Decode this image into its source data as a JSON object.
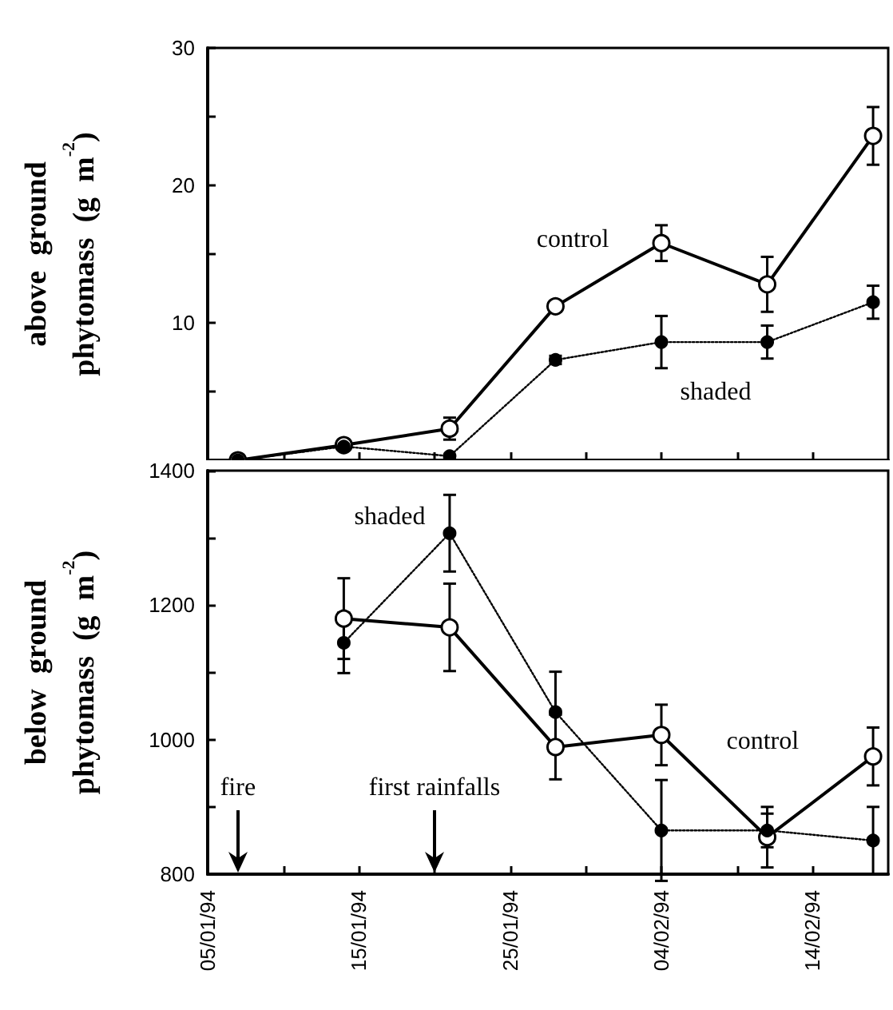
{
  "chart_data": [
    {
      "type": "line",
      "ylabel": "above ground phytomass (g m$^{-2}$)",
      "x": [
        "1994-01-07",
        "1994-01-14",
        "1994-01-21",
        "1994-01-28",
        "1994-02-04",
        "1994-02-11",
        "1994-02-18"
      ],
      "series": [
        {
          "name": "control",
          "color": "#000000",
          "line_style": "solid",
          "values": [
            0,
            1.1,
            2.3,
            11.2,
            15.8,
            12.8,
            23.6
          ],
          "errors": [
            null,
            null,
            0.8,
            0.4,
            1.3,
            2.0,
            2.1
          ]
        },
        {
          "name": "shaded",
          "color": "#000000",
          "line_style": "dotted",
          "values": [
            0,
            1.0,
            0.3,
            7.3,
            8.6,
            8.6,
            11.5
          ],
          "errors": [
            null,
            null,
            null,
            0.3,
            1.9,
            1.2,
            1.2
          ]
        }
      ],
      "xlim": [
        "1994-01-05",
        "1994-02-19"
      ],
      "xticks": [
        {
          "value": "1994-01-05",
          "label": null
        },
        {
          "value": "1994-01-10",
          "label": null
        },
        {
          "value": "1994-01-15",
          "label": null
        },
        {
          "value": "1994-01-20",
          "label": null
        },
        {
          "value": "1994-01-25",
          "label": null
        },
        {
          "value": "1994-01-30",
          "label": null
        },
        {
          "value": "1994-02-04",
          "label": null
        },
        {
          "value": "1994-02-09",
          "label": null
        },
        {
          "value": "1994-02-14",
          "label": null
        }
      ],
      "ylim": [
        0,
        30
      ],
      "yticks": [
        {
          "value": 0,
          "label": null
        },
        {
          "value": 5,
          "label": null
        },
        10,
        {
          "value": 15,
          "label": null
        },
        20,
        {
          "value": 25,
          "label": null
        },
        30
      ],
      "tick_labels": "y",
      "marker": "circle",
      "grid": false,
      "legend": false
    },
    {
      "type": "line",
      "ylabel": "below ground phytomass (g m$^{-2}$)",
      "x": [
        "1994-01-14",
        "1994-01-21",
        "1994-01-28",
        "1994-02-04",
        "1994-02-11",
        "1994-02-18"
      ],
      "series": [
        {
          "name": "control",
          "color": "#000000",
          "line_style": "solid",
          "values": [
            1180,
            1167,
            989,
            1007,
            855,
            975
          ],
          "errors": [
            60,
            65,
            48,
            45,
            45,
            43
          ]
        },
        {
          "name": "shaded",
          "color": "#000000",
          "line_style": "dotted",
          "values": [
            1144,
            1307,
            1041,
            865,
            865,
            850
          ],
          "errors": [
            45,
            57,
            60,
            75,
            25,
            50
          ]
        }
      ],
      "xlim": [
        "1994-01-05",
        "1994-02-19"
      ],
      "xticks": [
        {
          "value": "1994-01-05",
          "label": "05/01/94"
        },
        {
          "value": "1994-01-10",
          "label": null
        },
        {
          "value": "1994-01-15",
          "label": "15/01/94"
        },
        {
          "value": "1994-01-20",
          "label": null
        },
        {
          "value": "1994-01-25",
          "label": "25/01/94"
        },
        {
          "value": "1994-01-30",
          "label": null
        },
        {
          "value": "1994-02-04",
          "label": "04/02/94"
        },
        {
          "value": "1994-02-09",
          "label": null
        },
        {
          "value": "1994-02-14",
          "label": "14/02/94"
        }
      ],
      "ylim": [
        800,
        1400
      ],
      "yticks": [
        800,
        {
          "value": 900,
          "label": null
        },
        1000,
        {
          "value": 1100,
          "label": null
        },
        1200,
        {
          "value": 1300,
          "label": null
        },
        1400
      ],
      "ref_lines": [
        {
          "axis": "x",
          "value": "1994-01-07",
          "label": "fire"
        },
        {
          "axis": "x",
          "value": "1994-01-20",
          "label": "first rainfalls"
        }
      ],
      "marker": "circle",
      "grid": false,
      "legend": false
    }
  ]
}
